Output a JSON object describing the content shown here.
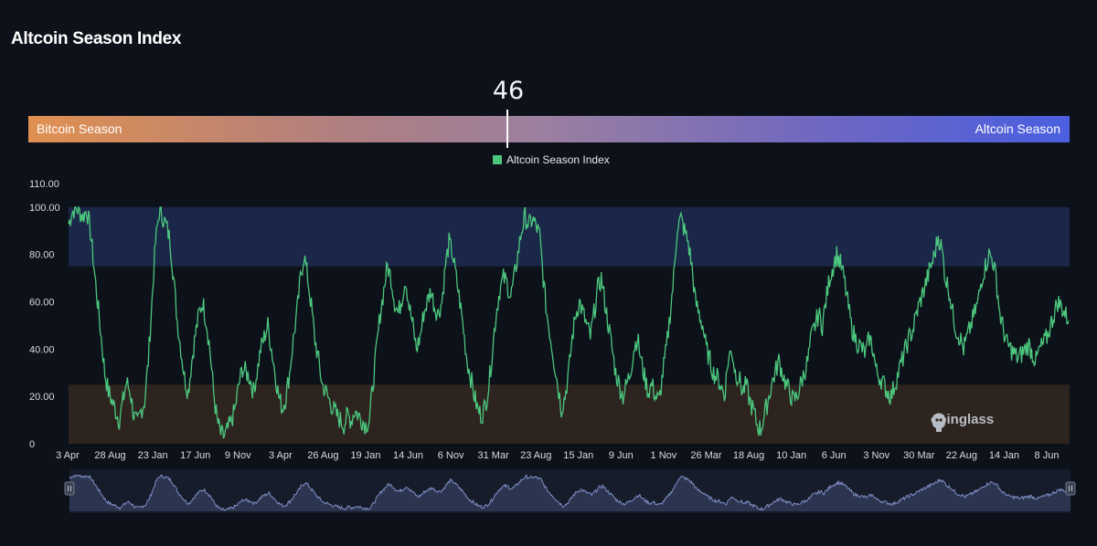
{
  "title": "Altcoin Season Index",
  "gauge": {
    "value": "46",
    "value_fraction": 0.46,
    "left_label": "Bitcoin Season",
    "right_label": "Altcoin Season"
  },
  "watermark": "coinglass",
  "colors": {
    "series": "#4cc77e",
    "altcoin_zone": "#1a2748",
    "bitcoin_zone": "#2d241f",
    "navigator_fill": "#2b3550",
    "navigator_line": "#7f8fc6"
  },
  "chart_data": {
    "type": "line",
    "title": "",
    "xlabel": "",
    "ylabel": "",
    "ylim": [
      0,
      110
    ],
    "y_ticks": [
      "110.00",
      "100.00",
      "80.00",
      "60.00",
      "40.00",
      "20.00",
      "0"
    ],
    "x_tick_labels": [
      "3 Apr",
      "28 Aug",
      "23 Jan",
      "17 Jun",
      "9 Nov",
      "3 Apr",
      "26 Aug",
      "19 Jan",
      "14 Jun",
      "6 Nov",
      "31 Mar",
      "23 Aug",
      "15 Jan",
      "9 Jun",
      "1 Nov",
      "26 Mar",
      "18 Aug",
      "10 Jan",
      "6 Jun",
      "3 Nov",
      "30 Mar",
      "22 Aug",
      "14 Jan",
      "8 Jun"
    ],
    "bands": [
      {
        "from": 75,
        "to": 100,
        "meaning": "altcoin season zone"
      },
      {
        "from": 0,
        "to": 25,
        "meaning": "bitcoin season zone"
      }
    ],
    "grid": false,
    "legend_position": "top-center",
    "series": [
      {
        "name": "Altcoin Season Index",
        "color": "#4cc77e",
        "x_start": "3 Apr",
        "values": [
          93,
          98,
          100,
          98,
          96,
          99,
          90,
          75,
          60,
          45,
          30,
          22,
          18,
          14,
          10,
          18,
          26,
          22,
          12,
          8,
          14,
          18,
          35,
          60,
          85,
          98,
          96,
          92,
          86,
          70,
          52,
          40,
          28,
          22,
          35,
          46,
          55,
          60,
          52,
          40,
          22,
          10,
          4,
          3,
          6,
          10,
          15,
          25,
          32,
          30,
          28,
          22,
          30,
          40,
          45,
          50,
          40,
          30,
          20,
          15,
          20,
          30,
          44,
          55,
          70,
          80,
          70,
          58,
          44,
          35,
          25,
          22,
          18,
          15,
          12,
          10,
          8,
          12,
          10,
          14,
          12,
          10,
          8,
          10,
          25,
          40,
          55,
          65,
          75,
          70,
          60,
          55,
          62,
          70,
          58,
          50,
          40,
          45,
          55,
          60,
          65,
          58,
          55,
          60,
          75,
          85,
          80,
          70,
          60,
          48,
          35,
          28,
          20,
          14,
          12,
          16,
          25,
          40,
          55,
          65,
          70,
          68,
          62,
          70,
          80,
          90,
          96,
          92,
          95,
          92,
          88,
          70,
          55,
          45,
          35,
          25,
          15,
          20,
          30,
          45,
          55,
          60,
          55,
          50,
          45,
          55,
          65,
          70,
          60,
          50,
          40,
          30,
          25,
          20,
          25,
          30,
          40,
          45,
          35,
          28,
          22,
          25,
          20,
          18,
          30,
          40,
          55,
          70,
          92,
          95,
          90,
          85,
          75,
          60,
          55,
          50,
          40,
          35,
          30,
          28,
          25,
          20,
          35,
          40,
          30,
          28,
          22,
          25,
          18,
          14,
          8,
          6,
          12,
          18,
          25,
          30,
          35,
          30,
          25,
          22,
          18,
          20,
          25,
          30,
          35,
          45,
          50,
          55,
          50,
          60,
          70,
          75,
          80,
          76,
          70,
          60,
          50,
          45,
          42,
          40,
          38,
          45,
          40,
          30,
          28,
          25,
          22,
          20,
          25,
          30,
          35,
          40,
          45,
          48,
          55,
          60,
          65,
          70,
          75,
          80,
          88,
          82,
          70,
          65,
          55,
          48,
          45,
          40,
          45,
          50,
          55,
          60,
          70,
          75,
          80,
          78,
          70,
          55,
          48,
          42,
          40,
          38,
          36,
          38,
          40,
          42,
          38,
          35,
          40,
          42,
          45,
          50,
          55,
          60,
          58,
          55,
          52
        ],
        "note_values_are_approximate_reading": true
      }
    ],
    "navigator": {
      "range": "full"
    }
  }
}
